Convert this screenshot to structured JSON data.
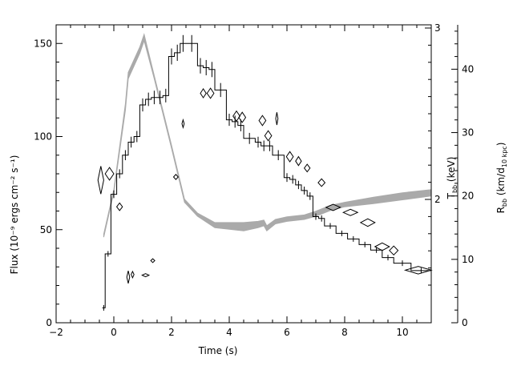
{
  "chart_data": {
    "type": "line",
    "xlabel": "Time (s)",
    "ylabel_left": "Flux (10⁻⁹ ergs cm⁻² s⁻¹)",
    "ylabel_right_kT": "T",
    "ylabel_right_kT_sub": "bb",
    "ylabel_right_kT_unit": " (keV)",
    "ylabel_right_R": "R",
    "ylabel_right_R_sub": "bb",
    "ylabel_right_R_mid": " (km/d",
    "ylabel_right_R_sub2": "10 kpc",
    "ylabel_right_R_end": ")",
    "xlim": [
      -2,
      11
    ],
    "ylim_left": [
      0,
      160
    ],
    "ylim_R": [
      0,
      47
    ],
    "x_ticks": [
      -2,
      0,
      2,
      4,
      6,
      8,
      10
    ],
    "y_left_ticks": [
      0,
      50,
      100,
      150
    ],
    "y_kT_ticks": [
      2,
      3
    ],
    "y_R_ticks": [
      0,
      10,
      20,
      30,
      40
    ],
    "series": [
      {
        "style": "step",
        "color": "#000000",
        "steps": [
          [
            -0.4,
            -0.3,
            8
          ],
          [
            -0.3,
            -0.1,
            37
          ],
          [
            -0.1,
            0.1,
            69
          ],
          [
            0.1,
            0.3,
            80
          ],
          [
            0.3,
            0.5,
            90
          ],
          [
            0.5,
            0.7,
            97
          ],
          [
            0.7,
            0.9,
            100
          ],
          [
            0.9,
            1.1,
            117
          ],
          [
            1.1,
            1.3,
            120
          ],
          [
            1.3,
            1.5,
            121
          ],
          [
            1.5,
            1.7,
            121
          ],
          [
            1.7,
            1.9,
            122
          ],
          [
            1.9,
            2.1,
            143
          ],
          [
            2.1,
            2.3,
            145
          ],
          [
            2.3,
            2.5,
            150
          ],
          [
            2.5,
            2.9,
            150
          ],
          [
            2.9,
            3.1,
            138
          ],
          [
            3.1,
            3.3,
            137
          ],
          [
            3.3,
            3.5,
            136
          ],
          [
            3.5,
            3.9,
            125
          ],
          [
            3.9,
            4.1,
            109
          ],
          [
            4.1,
            4.3,
            108
          ],
          [
            4.3,
            4.5,
            106
          ],
          [
            4.5,
            4.9,
            99
          ],
          [
            4.9,
            5.1,
            97
          ],
          [
            5.1,
            5.3,
            95
          ],
          [
            5.3,
            5.5,
            95
          ],
          [
            5.5,
            5.9,
            90
          ],
          [
            5.9,
            6.1,
            78
          ],
          [
            6.1,
            6.3,
            77
          ],
          [
            6.3,
            6.5,
            74
          ],
          [
            6.5,
            6.7,
            71
          ],
          [
            6.7,
            6.9,
            68
          ],
          [
            6.9,
            7.1,
            57
          ],
          [
            7.1,
            7.3,
            56
          ],
          [
            7.3,
            7.7,
            52
          ],
          [
            7.7,
            8.1,
            48
          ],
          [
            8.1,
            8.5,
            45
          ],
          [
            8.5,
            8.9,
            42
          ],
          [
            8.9,
            9.3,
            39
          ],
          [
            9.3,
            9.7,
            35
          ],
          [
            9.7,
            10.3,
            32
          ],
          [
            10.3,
            11.0,
            28
          ]
        ]
      },
      {
        "style": "band",
        "color": "#aaaaaa",
        "axis": "kT",
        "x": [
          -0.35,
          0,
          0.4,
          0.5,
          0.9,
          1.05,
          1.4,
          2.0,
          2.45,
          2.9,
          3.5,
          4.5,
          5.0,
          5.2,
          5.3,
          5.6,
          6.0,
          6.6,
          7.0,
          7.5,
          8.0,
          9.0,
          10.0,
          11.0
        ],
        "low": [
          13.5,
          20.5,
          33.5,
          38.5,
          42.5,
          44.5,
          38.5,
          27.5,
          19.0,
          16.8,
          15.0,
          14.5,
          15.0,
          15.3,
          14.5,
          15.6,
          16.0,
          16.3,
          16.8,
          17.7,
          18.3,
          18.8,
          19.4,
          20.0
        ],
        "high": [
          14.0,
          21.0,
          34.5,
          39.5,
          43.5,
          45.5,
          39.0,
          28.0,
          19.5,
          17.3,
          15.8,
          15.8,
          16.0,
          16.2,
          15.3,
          16.3,
          16.7,
          17.0,
          17.6,
          18.5,
          19.0,
          19.8,
          20.5,
          21.0
        ]
      },
      {
        "style": "diamonds",
        "color": "#000000",
        "axis": "R",
        "points": [
          [
            -0.45,
            22.5,
            0.1,
            2.2
          ],
          [
            -0.15,
            23.5,
            0.15,
            1.0
          ],
          [
            0.2,
            18.3,
            0.1,
            0.6
          ],
          [
            0.5,
            7.2,
            0.05,
            1.0
          ],
          [
            0.65,
            7.6,
            0.05,
            0.5
          ],
          [
            1.1,
            7.5,
            0.12,
            0.25
          ],
          [
            1.35,
            9.8,
            0.07,
            0.3
          ],
          [
            2.15,
            23.0,
            0.08,
            0.4
          ],
          [
            2.4,
            31.4,
            0.04,
            0.6
          ],
          [
            3.1,
            36.2,
            0.1,
            0.7
          ],
          [
            3.35,
            36.2,
            0.12,
            0.8
          ],
          [
            4.25,
            32.6,
            0.12,
            0.8
          ],
          [
            4.45,
            32.4,
            0.12,
            0.8
          ],
          [
            5.15,
            31.9,
            0.12,
            0.8
          ],
          [
            5.35,
            29.5,
            0.12,
            0.8
          ],
          [
            5.65,
            32.2,
            0.04,
            1.0
          ],
          [
            6.1,
            26.2,
            0.12,
            0.8
          ],
          [
            6.4,
            25.5,
            0.1,
            0.7
          ],
          [
            6.7,
            24.4,
            0.1,
            0.6
          ],
          [
            7.2,
            22.1,
            0.12,
            0.6
          ],
          [
            7.6,
            18.2,
            0.25,
            0.5
          ],
          [
            8.2,
            17.4,
            0.25,
            0.5
          ],
          [
            8.8,
            15.8,
            0.25,
            0.6
          ],
          [
            9.3,
            12.0,
            0.25,
            0.6
          ],
          [
            9.7,
            11.4,
            0.15,
            0.7
          ],
          [
            10.55,
            8.3,
            0.45,
            0.6
          ]
        ]
      }
    ]
  }
}
